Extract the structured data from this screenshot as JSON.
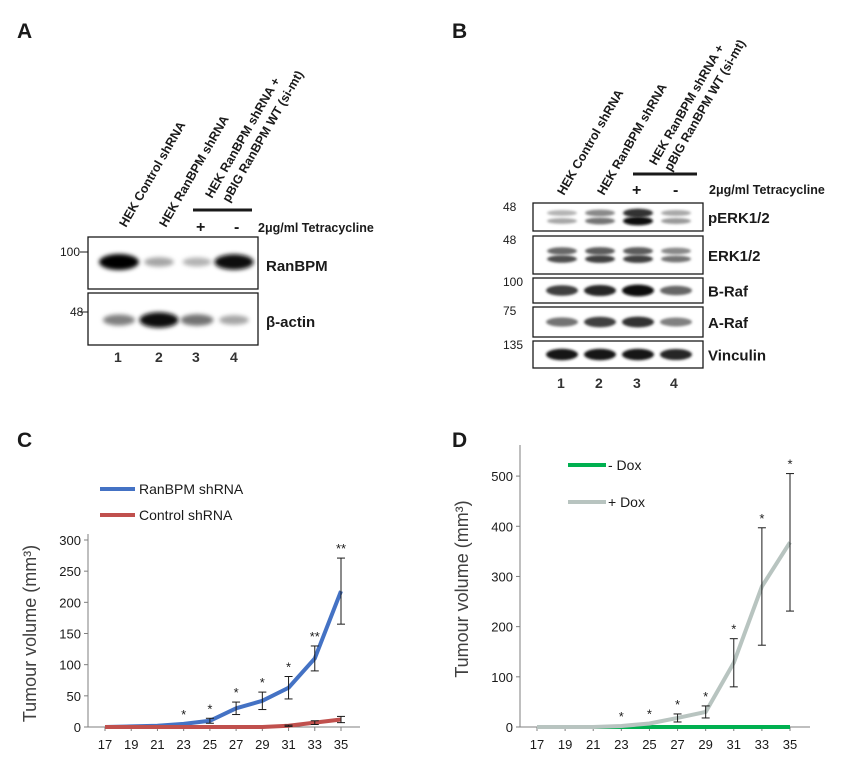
{
  "panel_a": {
    "letter": "A",
    "lanes": [
      "HEK Control shRNA",
      "HEK RanBPM shRNA",
      "HEK RanBPM shRNA +",
      "pBIG RanBPM WT (si-mt)"
    ],
    "treatment": "2μg/ml Tetracycline",
    "plus": "+",
    "minus": "-",
    "blots": [
      {
        "mw": "100",
        "name": "RanBPM",
        "intensities": [
          1.0,
          0.35,
          0.3,
          0.95
        ]
      },
      {
        "mw": "48",
        "name": "β-actin",
        "intensities": [
          0.5,
          0.95,
          0.55,
          0.35
        ]
      }
    ],
    "lane_numbers": [
      "1",
      "2",
      "3",
      "4"
    ]
  },
  "panel_b": {
    "letter": "B",
    "lanes": [
      "HEK Control shRNA",
      "HEK RanBPM shRNA",
      "HEK RanBPM shRNA +",
      "pBIG RanBPM WT (si-mt)"
    ],
    "treatment": "2μg/ml Tetracycline",
    "plus": "+",
    "minus": "-",
    "blots": [
      {
        "mw": "48",
        "name": "pERK1/2",
        "intensities": [
          0.35,
          0.55,
          0.95,
          0.4
        ]
      },
      {
        "mw": "48",
        "name": "ERK1/2",
        "intensities": [
          0.7,
          0.75,
          0.75,
          0.55
        ]
      },
      {
        "mw": "100",
        "name": "B-Raf",
        "intensities": [
          0.75,
          0.85,
          0.95,
          0.6
        ]
      },
      {
        "mw": "75",
        "name": "A-Raf",
        "intensities": [
          0.55,
          0.75,
          0.8,
          0.5
        ]
      },
      {
        "mw": "135",
        "name": "Vinculin",
        "intensities": [
          0.9,
          0.9,
          0.9,
          0.85
        ]
      }
    ],
    "lane_numbers": [
      "1",
      "2",
      "3",
      "4"
    ]
  },
  "chart_data": [
    {
      "panel": "C",
      "type": "line",
      "ylabel": "Tumour volume (mm³)",
      "x": [
        17,
        19,
        21,
        23,
        25,
        27,
        29,
        31,
        33,
        35
      ],
      "ylim": [
        0,
        300
      ],
      "yticks": [
        0,
        50,
        100,
        150,
        200,
        250,
        300
      ],
      "legend_position": "top-left",
      "series": [
        {
          "name": "RanBPM shRNA",
          "color": "#4472c4",
          "values": [
            0,
            1,
            2,
            5,
            10,
            30,
            42,
            63,
            110,
            218
          ],
          "errors": [
            0,
            0,
            0,
            0,
            4,
            10,
            14,
            18,
            20,
            53
          ]
        },
        {
          "name": "Control shRNA",
          "color": "#c0504d",
          "values": [
            0,
            0,
            0,
            0,
            0,
            0,
            0,
            2,
            7,
            12
          ],
          "errors": [
            0,
            0,
            0,
            0,
            0,
            0,
            0,
            1,
            3,
            5
          ]
        }
      ],
      "annotations": [
        {
          "x": 23,
          "label": "*"
        },
        {
          "x": 25,
          "label": "*"
        },
        {
          "x": 27,
          "label": "*"
        },
        {
          "x": 29,
          "label": "*"
        },
        {
          "x": 31,
          "label": "*"
        },
        {
          "x": 33,
          "label": "**"
        },
        {
          "x": 35,
          "label": "**"
        }
      ]
    },
    {
      "panel": "D",
      "type": "line",
      "ylabel": "Tumour volume (mm³)",
      "x": [
        17,
        19,
        21,
        23,
        25,
        27,
        29,
        31,
        33,
        35
      ],
      "ylim": [
        0,
        550
      ],
      "yticks": [
        0,
        100,
        200,
        300,
        400,
        500
      ],
      "legend_position": "top-left",
      "series": [
        {
          "name": "- Dox",
          "color": "#00b050",
          "values": [
            0,
            0,
            0,
            0,
            0,
            0,
            0,
            0,
            0,
            0
          ],
          "errors": [
            0,
            0,
            0,
            0,
            0,
            0,
            0,
            0,
            0,
            0
          ]
        },
        {
          "name": "+ Dox",
          "color": "#b8c4c0",
          "values": [
            0,
            0,
            0,
            2,
            7,
            18,
            30,
            128,
            280,
            368
          ],
          "errors": [
            0,
            0,
            0,
            0,
            0,
            8,
            12,
            48,
            117,
            137
          ]
        }
      ],
      "annotations": [
        {
          "x": 23,
          "label": "*"
        },
        {
          "x": 25,
          "label": "*"
        },
        {
          "x": 27,
          "label": "*"
        },
        {
          "x": 29,
          "label": "*"
        },
        {
          "x": 31,
          "label": "*"
        },
        {
          "x": 33,
          "label": "*"
        },
        {
          "x": 35,
          "label": "*"
        }
      ]
    }
  ]
}
